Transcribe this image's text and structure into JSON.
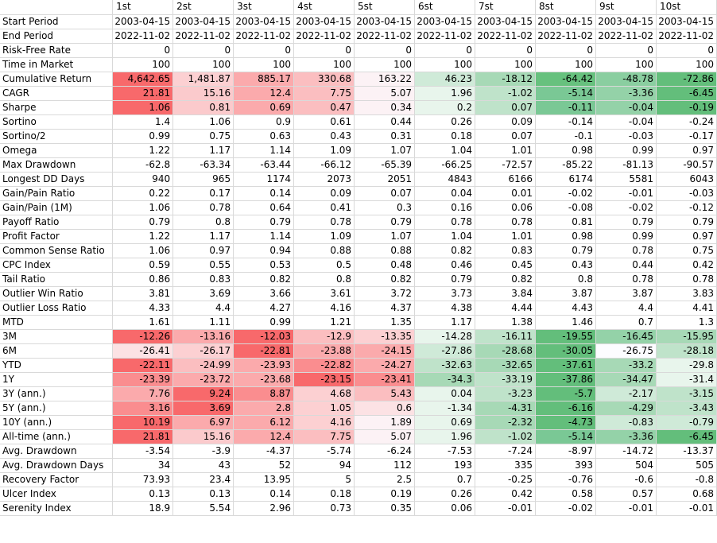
{
  "columns": [
    "1st",
    "2st",
    "3st",
    "4st",
    "5st",
    "6st",
    "7st",
    "8st",
    "9st",
    "10st"
  ],
  "rows": [
    {
      "label": "Start Period",
      "values": [
        "2003-04-15",
        "2003-04-15",
        "2003-04-15",
        "2003-04-15",
        "2003-04-15",
        "2003-04-15",
        "2003-04-15",
        "2003-04-15",
        "2003-04-15",
        "2003-04-15"
      ]
    },
    {
      "label": "End Period",
      "values": [
        "2022-11-02",
        "2022-11-02",
        "2022-11-02",
        "2022-11-02",
        "2022-11-02",
        "2022-11-02",
        "2022-11-02",
        "2022-11-02",
        "2022-11-02",
        "2022-11-02"
      ]
    },
    {
      "label": "Risk-Free Rate",
      "values": [
        "0",
        "0",
        "0",
        "0",
        "0",
        "0",
        "0",
        "0",
        "0",
        "0"
      ]
    },
    {
      "label": "Time in Market",
      "values": [
        "100",
        "100",
        "100",
        "100",
        "100",
        "100",
        "100",
        "100",
        "100",
        "100"
      ]
    },
    {
      "label": "Cumulative Return",
      "values": [
        "4,642.65",
        "1,481.87",
        "885.17",
        "330.68",
        "163.22",
        "46.23",
        "-18.12",
        "-64.42",
        "-48.78",
        "-72.86"
      ],
      "colors": [
        "#f8696b",
        "#fcd0d2",
        "#fbaaac",
        "#fbbec0",
        "#fcf2f5",
        "#cfead8",
        "#a7d9b6",
        "#67c17e",
        "#8acea0",
        "#63be7b"
      ]
    },
    {
      "label": "CAGR",
      "values": [
        "21.81",
        "15.16",
        "12.4",
        "7.75",
        "5.07",
        "1.96",
        "-1.02",
        "-5.14",
        "-3.36",
        "-6.45"
      ],
      "colors": [
        "#f8696b",
        "#fbcacc",
        "#fbaaac",
        "#fbbec0",
        "#fcf2f5",
        "#e8f5ec",
        "#bfe3ca",
        "#7ac895",
        "#94d2a8",
        "#63be7b"
      ]
    },
    {
      "label": "Sharpe",
      "values": [
        "1.06",
        "0.81",
        "0.69",
        "0.47",
        "0.34",
        "0.2",
        "0.07",
        "-0.11",
        "-0.04",
        "-0.19"
      ],
      "colors": [
        "#f8696b",
        "#fbcacc",
        "#fbaaac",
        "#fbbec0",
        "#fcf2f5",
        "#e8f5ec",
        "#bfe3ca",
        "#7ac895",
        "#94d2a8",
        "#63be7b"
      ]
    },
    {
      "label": "Sortino",
      "values": [
        "1.4",
        "1.06",
        "0.9",
        "0.61",
        "0.44",
        "0.26",
        "0.09",
        "-0.14",
        "-0.04",
        "-0.24"
      ]
    },
    {
      "label": "Sortino/2",
      "values": [
        "0.99",
        "0.75",
        "0.63",
        "0.43",
        "0.31",
        "0.18",
        "0.07",
        "-0.1",
        "-0.03",
        "-0.17"
      ]
    },
    {
      "label": "Omega",
      "values": [
        "1.22",
        "1.17",
        "1.14",
        "1.09",
        "1.07",
        "1.04",
        "1.01",
        "0.98",
        "0.99",
        "0.97"
      ]
    },
    {
      "label": "Max Drawdown",
      "values": [
        "-62.8",
        "-63.34",
        "-63.44",
        "-66.12",
        "-65.39",
        "-66.25",
        "-72.57",
        "-85.22",
        "-81.13",
        "-90.57"
      ]
    },
    {
      "label": "Longest DD Days",
      "values": [
        "940",
        "965",
        "1174",
        "2073",
        "2051",
        "4843",
        "6166",
        "6174",
        "5581",
        "6043"
      ]
    },
    {
      "label": "Gain/Pain Ratio",
      "values": [
        "0.22",
        "0.17",
        "0.14",
        "0.09",
        "0.07",
        "0.04",
        "0.01",
        "-0.02",
        "-0.01",
        "-0.03"
      ]
    },
    {
      "label": "Gain/Pain (1M)",
      "values": [
        "1.06",
        "0.78",
        "0.64",
        "0.41",
        "0.3",
        "0.16",
        "0.06",
        "-0.08",
        "-0.02",
        "-0.12"
      ]
    },
    {
      "label": "Payoff Ratio",
      "values": [
        "0.79",
        "0.8",
        "0.79",
        "0.78",
        "0.79",
        "0.78",
        "0.78",
        "0.81",
        "0.79",
        "0.79"
      ]
    },
    {
      "label": "Profit Factor",
      "values": [
        "1.22",
        "1.17",
        "1.14",
        "1.09",
        "1.07",
        "1.04",
        "1.01",
        "0.98",
        "0.99",
        "0.97"
      ]
    },
    {
      "label": "Common Sense Ratio",
      "values": [
        "1.06",
        "0.97",
        "0.94",
        "0.88",
        "0.88",
        "0.82",
        "0.83",
        "0.79",
        "0.78",
        "0.75"
      ]
    },
    {
      "label": "CPC Index",
      "values": [
        "0.59",
        "0.55",
        "0.53",
        "0.5",
        "0.48",
        "0.46",
        "0.45",
        "0.43",
        "0.44",
        "0.42"
      ]
    },
    {
      "label": "Tail Ratio",
      "values": [
        "0.86",
        "0.83",
        "0.82",
        "0.8",
        "0.82",
        "0.79",
        "0.82",
        "0.8",
        "0.78",
        "0.78"
      ]
    },
    {
      "label": "Outlier Win Ratio",
      "values": [
        "3.81",
        "3.69",
        "3.66",
        "3.61",
        "3.72",
        "3.73",
        "3.84",
        "3.87",
        "3.87",
        "3.83"
      ]
    },
    {
      "label": "Outlier Loss Ratio",
      "values": [
        "4.33",
        "4.4",
        "4.27",
        "4.16",
        "4.37",
        "4.38",
        "4.44",
        "4.43",
        "4.4",
        "4.41"
      ]
    },
    {
      "label": "MTD",
      "values": [
        "1.61",
        "1.11",
        "0.99",
        "1.21",
        "1.35",
        "1.17",
        "1.38",
        "1.46",
        "0.7",
        "1.3"
      ]
    },
    {
      "label": "3M",
      "values": [
        "-12.26",
        "-13.16",
        "-12.03",
        "-12.9",
        "-13.35",
        "-14.28",
        "-16.11",
        "-19.55",
        "-16.45",
        "-15.95"
      ],
      "colors": [
        "#f8696b",
        "#fbaaac",
        "#f8696b",
        "#fbbec0",
        "#fcd0d2",
        "#e8f5ec",
        "#bfe3ca",
        "#63be7b",
        "#94d2a8",
        "#a7d9b6"
      ]
    },
    {
      "label": "6M",
      "values": [
        "-26.41",
        "-26.17",
        "-22.81",
        "-23.88",
        "-24.15",
        "-27.86",
        "-28.68",
        "-30.05",
        "-26.75",
        "-28.18"
      ],
      "colors": [
        "#fce2e4",
        "#fcd0d2",
        "#f8696b",
        "#fbaaac",
        "#fbaaac",
        "#cfead8",
        "#a7d9b6",
        "#63be7b",
        "#fcfcff",
        "#bfe3ca"
      ]
    },
    {
      "label": "YTD",
      "values": [
        "-22.11",
        "-24.99",
        "-23.93",
        "-22.82",
        "-24.27",
        "-32.63",
        "-32.65",
        "-37.61",
        "-33.2",
        "-29.8"
      ],
      "colors": [
        "#f8696b",
        "#fbbec0",
        "#fbaaac",
        "#fa8d8f",
        "#fbaaac",
        "#bfe3ca",
        "#a7d9b6",
        "#63be7b",
        "#a7d9b6",
        "#e8f5ec"
      ]
    },
    {
      "label": "1Y",
      "values": [
        "-23.39",
        "-23.72",
        "-23.68",
        "-23.15",
        "-23.41",
        "-34.3",
        "-33.19",
        "-37.86",
        "-34.47",
        "-31.4"
      ],
      "colors": [
        "#fa8d8f",
        "#fbaaac",
        "#fbaaac",
        "#f8696b",
        "#fa8d8f",
        "#a7d9b6",
        "#bfe3ca",
        "#63be7b",
        "#a7d9b6",
        "#e8f5ec"
      ]
    },
    {
      "label": "3Y (ann.)",
      "values": [
        "7.76",
        "9.24",
        "8.87",
        "4.68",
        "5.43",
        "0.04",
        "-3.23",
        "-5.7",
        "-2.17",
        "-3.15"
      ],
      "colors": [
        "#fbaaac",
        "#f8696b",
        "#fa8d8f",
        "#fcd0d2",
        "#fbbec0",
        "#e8f5ec",
        "#bfe3ca",
        "#63be7b",
        "#cfead8",
        "#bfe3ca"
      ]
    },
    {
      "label": "5Y (ann.)",
      "values": [
        "3.16",
        "3.69",
        "2.8",
        "1.05",
        "0.6",
        "-1.34",
        "-4.31",
        "-6.16",
        "-4.29",
        "-3.43"
      ],
      "colors": [
        "#fa8d8f",
        "#f8696b",
        "#fbaaac",
        "#fcd0d2",
        "#fce2e4",
        "#e8f5ec",
        "#a7d9b6",
        "#63be7b",
        "#a7d9b6",
        "#bfe3ca"
      ]
    },
    {
      "label": "10Y (ann.)",
      "values": [
        "10.19",
        "6.97",
        "6.12",
        "4.16",
        "1.89",
        "0.69",
        "-2.32",
        "-4.73",
        "-0.83",
        "-0.79"
      ],
      "colors": [
        "#f8696b",
        "#fbaaac",
        "#fbaaac",
        "#fcd0d2",
        "#fcf2f5",
        "#e8f5ec",
        "#a7d9b6",
        "#63be7b",
        "#cfead8",
        "#cfead8"
      ]
    },
    {
      "label": "All-time (ann.)",
      "values": [
        "21.81",
        "15.16",
        "12.4",
        "7.75",
        "5.07",
        "1.96",
        "-1.02",
        "-5.14",
        "-3.36",
        "-6.45"
      ],
      "colors": [
        "#f8696b",
        "#fbcacc",
        "#fbaaac",
        "#fbbec0",
        "#fcf2f5",
        "#e8f5ec",
        "#bfe3ca",
        "#7ac895",
        "#94d2a8",
        "#63be7b"
      ]
    },
    {
      "label": "Avg. Drawdown",
      "values": [
        "-3.54",
        "-3.9",
        "-4.37",
        "-5.74",
        "-6.24",
        "-7.53",
        "-7.24",
        "-8.97",
        "-14.72",
        "-13.37"
      ]
    },
    {
      "label": "Avg. Drawdown Days",
      "values": [
        "34",
        "43",
        "52",
        "94",
        "112",
        "193",
        "335",
        "393",
        "504",
        "505"
      ]
    },
    {
      "label": "Recovery Factor",
      "values": [
        "73.93",
        "23.4",
        "13.95",
        "5",
        "2.5",
        "0.7",
        "-0.25",
        "-0.76",
        "-0.6",
        "-0.8"
      ]
    },
    {
      "label": "Ulcer Index",
      "values": [
        "0.13",
        "0.13",
        "0.14",
        "0.18",
        "0.19",
        "0.26",
        "0.42",
        "0.58",
        "0.57",
        "0.68"
      ]
    },
    {
      "label": "Serenity Index",
      "values": [
        "18.9",
        "5.54",
        "2.96",
        "0.73",
        "0.35",
        "0.06",
        "-0.01",
        "-0.02",
        "-0.01",
        "-0.01"
      ]
    }
  ]
}
